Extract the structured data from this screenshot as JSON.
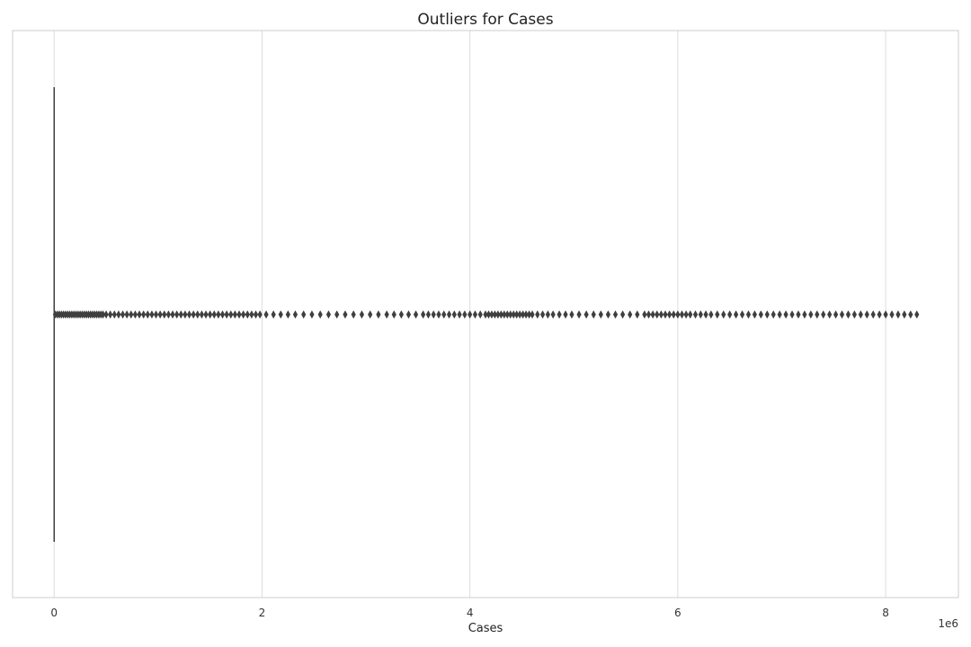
{
  "chart_data": {
    "type": "boxplot",
    "orientation": "horizontal",
    "title": "Outliers for Cases",
    "xlabel": "Cases",
    "ylabel": "",
    "x_offset_text": "1e6",
    "xlim": [
      -400000,
      8700000
    ],
    "x_ticks": [
      0,
      2000000,
      4000000,
      6000000,
      8000000
    ],
    "x_tick_labels": [
      "0",
      "2",
      "4",
      "6",
      "8"
    ],
    "grid": true,
    "legend": "none",
    "box": {
      "q1": 0,
      "median": 0,
      "q3": 0,
      "whisker_low": 0,
      "whisker_high": 0
    },
    "outlier_marker": "diamond",
    "outlier_values": [
      10000,
      30000,
      50000,
      70000,
      90000,
      110000,
      130000,
      150000,
      170000,
      190000,
      210000,
      230000,
      250000,
      270000,
      290000,
      310000,
      330000,
      350000,
      370000,
      390000,
      410000,
      430000,
      450000,
      470000,
      500000,
      540000,
      580000,
      620000,
      660000,
      700000,
      740000,
      780000,
      820000,
      860000,
      900000,
      940000,
      980000,
      1020000,
      1060000,
      1100000,
      1140000,
      1180000,
      1220000,
      1260000,
      1300000,
      1340000,
      1380000,
      1420000,
      1460000,
      1500000,
      1540000,
      1580000,
      1620000,
      1660000,
      1700000,
      1740000,
      1780000,
      1820000,
      1860000,
      1900000,
      1940000,
      1980000,
      2040000,
      2110000,
      2180000,
      2250000,
      2320000,
      2400000,
      2480000,
      2560000,
      2640000,
      2720000,
      2800000,
      2880000,
      2960000,
      3040000,
      3120000,
      3200000,
      3270000,
      3340000,
      3410000,
      3480000,
      3550000,
      3600000,
      3650000,
      3700000,
      3750000,
      3800000,
      3850000,
      3900000,
      3950000,
      4000000,
      4050000,
      4100000,
      4150000,
      4180000,
      4210000,
      4240000,
      4270000,
      4300000,
      4330000,
      4360000,
      4390000,
      4420000,
      4450000,
      4480000,
      4510000,
      4540000,
      4570000,
      4600000,
      4650000,
      4700000,
      4750000,
      4800000,
      4860000,
      4920000,
      4980000,
      5050000,
      5120000,
      5190000,
      5260000,
      5330000,
      5400000,
      5470000,
      5540000,
      5610000,
      5680000,
      5720000,
      5760000,
      5800000,
      5840000,
      5880000,
      5920000,
      5960000,
      6000000,
      6040000,
      6080000,
      6120000,
      6170000,
      6220000,
      6270000,
      6320000,
      6380000,
      6440000,
      6500000,
      6560000,
      6620000,
      6680000,
      6740000,
      6800000,
      6860000,
      6920000,
      6980000,
      7040000,
      7100000,
      7160000,
      7220000,
      7280000,
      7340000,
      7400000,
      7460000,
      7520000,
      7580000,
      7640000,
      7700000,
      7760000,
      7820000,
      7880000,
      7940000,
      8000000,
      8060000,
      8120000,
      8180000,
      8240000,
      8300000
    ],
    "colors": {
      "outlier": "#3f3f3f",
      "whisker": "#3f3f3f",
      "grid": "#dcdcdc",
      "frame": "#cccccc"
    }
  }
}
